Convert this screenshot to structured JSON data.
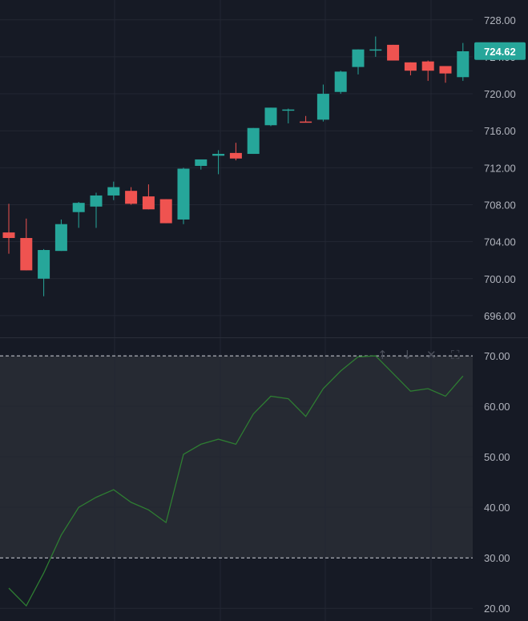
{
  "colors": {
    "background": "#161a25",
    "grid": "#232733",
    "axis_text": "#b2b5be",
    "up": "#26a69a",
    "down": "#ef5350",
    "rsi_line": "#2e7d32",
    "rsi_band": "#262a33",
    "separator": "#2a2e39",
    "band_border": "#d1d4dc"
  },
  "price_axis": {
    "ticks": [
      "728.00",
      "724.00",
      "720.00",
      "716.00",
      "712.00",
      "708.00",
      "704.00",
      "700.00",
      "696.00"
    ],
    "last_price_label": "724.62"
  },
  "rsi_axis": {
    "ticks": [
      "70.00",
      "60.00",
      "50.00",
      "40.00",
      "30.00",
      "20.00"
    ]
  },
  "pane_buttons": {
    "up_icon": "↑",
    "down_icon": "↓",
    "close_icon": "✕",
    "maximize_icon": "⛶"
  },
  "chart_data": [
    {
      "type": "candlestick",
      "ylim": [
        694.0,
        729.8
      ],
      "last_price": 724.62,
      "candles": [
        {
          "o": 705.0,
          "h": 708.1,
          "l": 702.7,
          "c": 704.4
        },
        {
          "o": 704.4,
          "h": 706.5,
          "l": 700.9,
          "c": 700.9
        },
        {
          "o": 700.0,
          "h": 703.2,
          "l": 698.1,
          "c": 703.1
        },
        {
          "o": 703.0,
          "h": 706.4,
          "l": 703.0,
          "c": 705.9
        },
        {
          "o": 707.2,
          "h": 708.3,
          "l": 705.5,
          "c": 708.2
        },
        {
          "o": 707.8,
          "h": 709.3,
          "l": 705.5,
          "c": 709.0
        },
        {
          "o": 709.0,
          "h": 710.5,
          "l": 708.5,
          "c": 709.9
        },
        {
          "o": 709.5,
          "h": 709.9,
          "l": 708.0,
          "c": 708.1
        },
        {
          "o": 708.9,
          "h": 710.2,
          "l": 707.5,
          "c": 707.5
        },
        {
          "o": 708.6,
          "h": 708.6,
          "l": 706.0,
          "c": 706.0
        },
        {
          "o": 706.4,
          "h": 712.0,
          "l": 705.9,
          "c": 711.9
        },
        {
          "o": 712.2,
          "h": 712.9,
          "l": 711.8,
          "c": 712.9
        },
        {
          "o": 713.3,
          "h": 713.9,
          "l": 711.3,
          "c": 713.5
        },
        {
          "o": 713.6,
          "h": 714.7,
          "l": 712.8,
          "c": 713.0
        },
        {
          "o": 713.5,
          "h": 716.3,
          "l": 713.5,
          "c": 716.3
        },
        {
          "o": 716.6,
          "h": 718.5,
          "l": 716.5,
          "c": 718.5
        },
        {
          "o": 718.2,
          "h": 718.4,
          "l": 716.8,
          "c": 718.3
        },
        {
          "o": 717.0,
          "h": 717.6,
          "l": 716.9,
          "c": 716.9
        },
        {
          "o": 717.2,
          "h": 721.0,
          "l": 717.0,
          "c": 720.0
        },
        {
          "o": 720.2,
          "h": 722.5,
          "l": 720.0,
          "c": 722.4
        },
        {
          "o": 722.9,
          "h": 724.8,
          "l": 722.1,
          "c": 724.8
        },
        {
          "o": 724.8,
          "h": 726.2,
          "l": 724.0,
          "c": 724.8
        },
        {
          "o": 725.3,
          "h": 725.3,
          "l": 723.6,
          "c": 723.6
        },
        {
          "o": 723.4,
          "h": 723.4,
          "l": 722.0,
          "c": 722.5
        },
        {
          "o": 723.5,
          "h": 723.6,
          "l": 721.4,
          "c": 722.5
        },
        {
          "o": 723.0,
          "h": 723.0,
          "l": 721.2,
          "c": 722.2
        },
        {
          "o": 721.8,
          "h": 725.5,
          "l": 721.4,
          "c": 724.6
        }
      ]
    },
    {
      "type": "line",
      "ylim": [
        17.5,
        73.5
      ],
      "upper_band": 70,
      "lower_band": 30,
      "values": [
        24.0,
        20.5,
        27.0,
        34.5,
        40.0,
        42.0,
        43.5,
        41.0,
        39.5,
        37.0,
        50.5,
        52.5,
        53.5,
        52.5,
        58.5,
        62.0,
        61.5,
        58.0,
        63.5,
        67.0,
        69.8,
        70.0,
        66.5,
        63.0,
        63.5,
        62.0,
        66.0
      ]
    }
  ]
}
